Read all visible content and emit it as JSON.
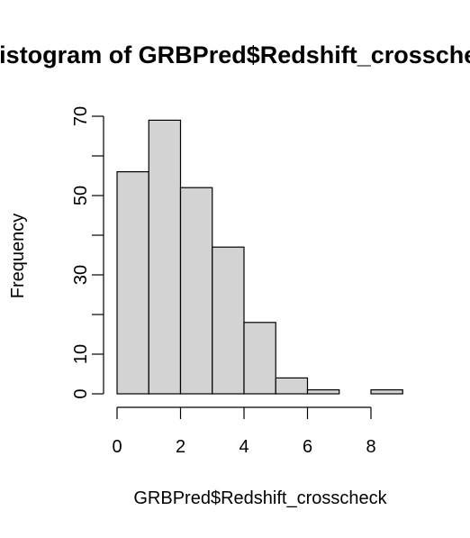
{
  "chart_data": {
    "type": "bar",
    "title": "Histogram of GRBPred$Redshift_crosscheck",
    "xlabel": "GRBPred$Redshift_crosscheck",
    "ylabel": "Frequency",
    "bins": [
      {
        "start": 0,
        "end": 1,
        "count": 56
      },
      {
        "start": 1,
        "end": 2,
        "count": 69
      },
      {
        "start": 2,
        "end": 3,
        "count": 52
      },
      {
        "start": 3,
        "end": 4,
        "count": 37
      },
      {
        "start": 4,
        "end": 5,
        "count": 18
      },
      {
        "start": 5,
        "end": 6,
        "count": 4
      },
      {
        "start": 6,
        "end": 7,
        "count": 1
      },
      {
        "start": 7,
        "end": 8,
        "count": 0
      },
      {
        "start": 8,
        "end": 9,
        "count": 1
      }
    ],
    "xticks": [
      0,
      2,
      4,
      6,
      8
    ],
    "yticks": [
      0,
      10,
      30,
      50,
      70
    ],
    "yticks_minor": [
      20,
      40,
      60
    ],
    "xlim": [
      0,
      9
    ],
    "ylim": [
      0,
      70
    ],
    "grid": false
  }
}
